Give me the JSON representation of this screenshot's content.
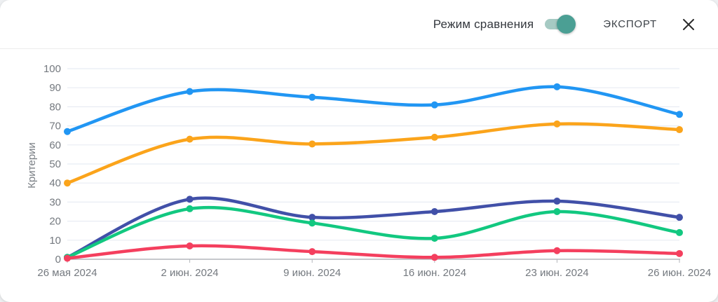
{
  "header": {
    "compare_label": "Режим сравнения",
    "compare_on": true,
    "export_label": "ЭКСПОРТ"
  },
  "toggle_colors": {
    "track": "#a6cac3",
    "thumb": "#4b9f94"
  },
  "chart_data": {
    "type": "line",
    "title": "",
    "xlabel": "",
    "ylabel": "Критерии",
    "ylim": [
      0,
      100
    ],
    "ytick_step": 10,
    "grid": true,
    "legend": false,
    "categories": [
      "26 мая 2024",
      "2 июн. 2024",
      "9 июн. 2024",
      "16 июн. 2024",
      "23 июн. 2024",
      "26 июн. 2024"
    ],
    "series": [
      {
        "name": "blue",
        "color": "#2196f3",
        "values": [
          67,
          88,
          85,
          81,
          90.5,
          76
        ]
      },
      {
        "name": "orange",
        "color": "#fba41b",
        "values": [
          40,
          63,
          60.5,
          64,
          71,
          68
        ]
      },
      {
        "name": "indigo",
        "color": "#4150a8",
        "values": [
          1,
          31.5,
          22,
          25,
          30.5,
          22
        ]
      },
      {
        "name": "green",
        "color": "#12c880",
        "values": [
          1,
          26.5,
          19,
          11,
          25,
          14
        ]
      },
      {
        "name": "red",
        "color": "#f43f5e",
        "values": [
          0.5,
          7,
          4,
          1,
          4.5,
          3
        ]
      }
    ],
    "axis_colors": {
      "grid": "#e8ecf3",
      "axis_line": "#b3b6bc",
      "tick_text": "#74797f",
      "ylabel_text": "#7b8086"
    }
  }
}
